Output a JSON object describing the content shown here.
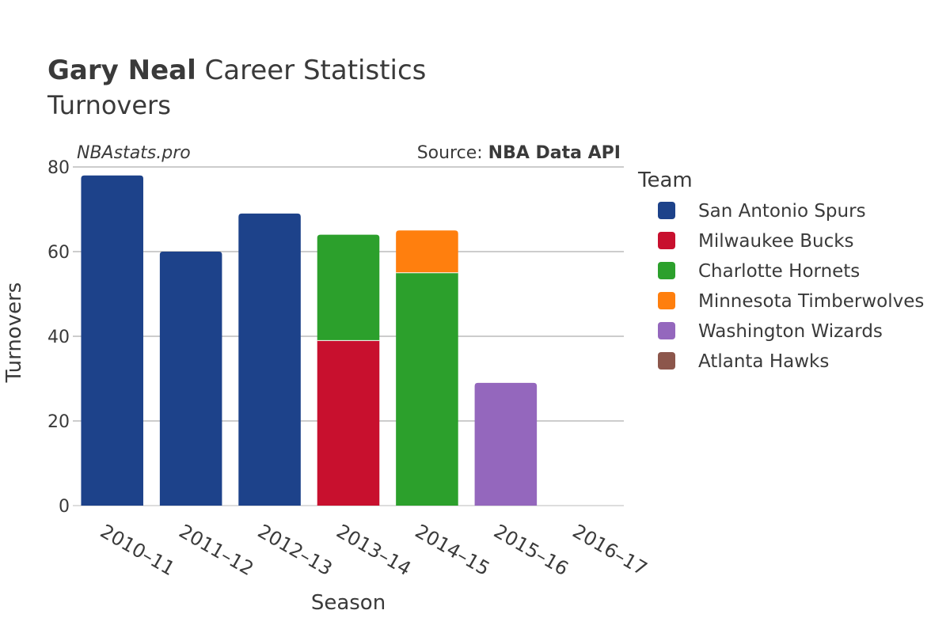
{
  "header": {
    "title_bold": "Gary Neal",
    "title_rest": " Career Statistics",
    "subtitle": "Turnovers"
  },
  "watermark": "NBAstats.pro",
  "source": {
    "prefix": "Source: ",
    "name": "NBA Data API"
  },
  "colors": {
    "San Antonio Spurs": "#1d428a",
    "Milwaukee Bucks": "#c8102e",
    "Charlotte Hornets": "#2ca02c",
    "Minnesota Timberwolves": "#ff7f0e",
    "Washington Wizards": "#9467bd",
    "Atlanta Hawks": "#8c564b",
    "grid": "#999999",
    "text": "#3a3a3a"
  },
  "chart_data": {
    "type": "bar",
    "stacked": true,
    "xlabel": "Season",
    "ylabel": "Turnovers",
    "ylim": [
      0,
      80
    ],
    "yticks": [
      0,
      20,
      40,
      60,
      80
    ],
    "grid": true,
    "legend_title": "Team",
    "legend_position": "right",
    "categories": [
      "2010–11",
      "2011–12",
      "2012–13",
      "2013–14",
      "2014–15",
      "2015–16",
      "2016–17"
    ],
    "series": [
      {
        "name": "San Antonio Spurs",
        "values": [
          78,
          60,
          69,
          0,
          0,
          0,
          0
        ]
      },
      {
        "name": "Milwaukee Bucks",
        "values": [
          0,
          0,
          0,
          39,
          0,
          0,
          0
        ]
      },
      {
        "name": "Charlotte Hornets",
        "values": [
          0,
          0,
          0,
          25,
          55,
          0,
          0
        ]
      },
      {
        "name": "Minnesota Timberwolves",
        "values": [
          0,
          0,
          0,
          0,
          10,
          0,
          0
        ]
      },
      {
        "name": "Washington Wizards",
        "values": [
          0,
          0,
          0,
          0,
          0,
          29,
          0
        ]
      },
      {
        "name": "Atlanta Hawks",
        "values": [
          0,
          0,
          0,
          0,
          0,
          0,
          0
        ]
      }
    ]
  }
}
